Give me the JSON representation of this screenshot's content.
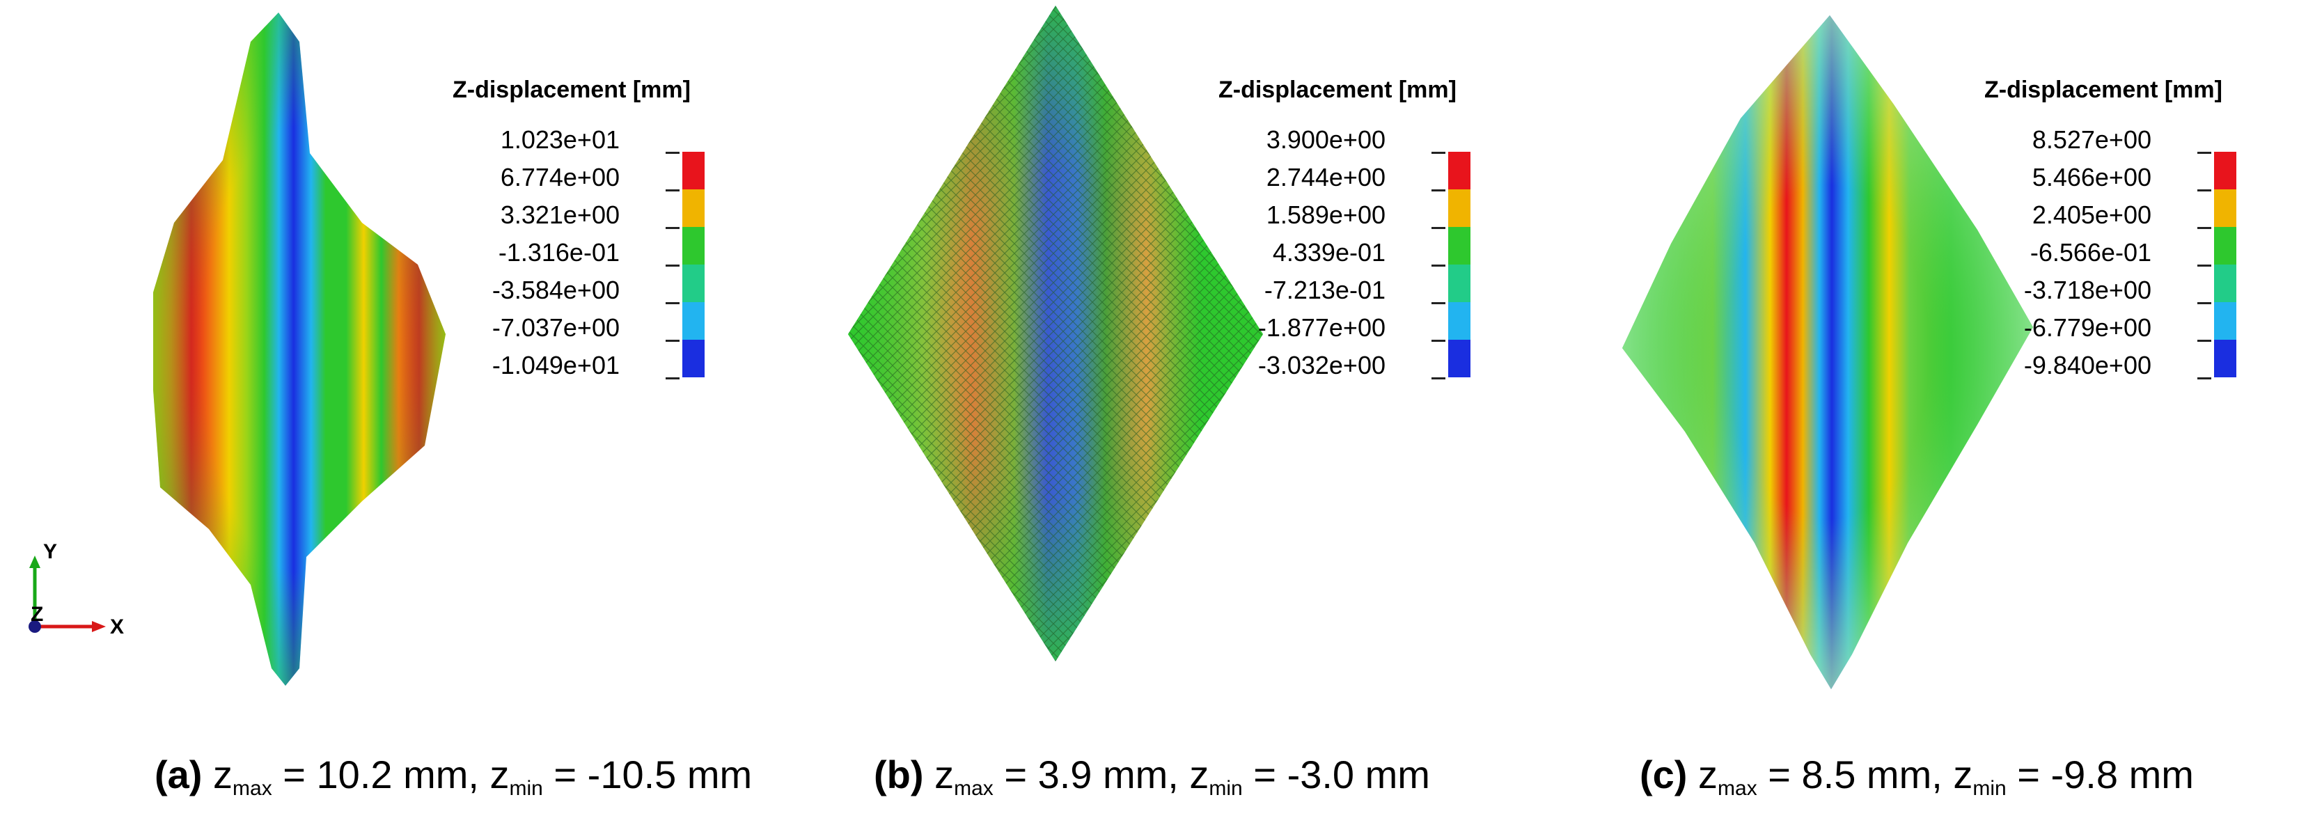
{
  "panels": [
    {
      "id": "a",
      "legend_title": "Z-displacement [mm]",
      "ticks": [
        "1.023e+01",
        "6.774e+00",
        "3.321e+00",
        "-1.316e-01",
        "-3.584e+00",
        "-7.037e+00",
        "-1.049e+01"
      ],
      "caption": {
        "label": "(a)",
        "zmax_sym": "z",
        "zmax_sub": "max",
        "zmax_text": " = 10.2 mm, ",
        "zmin_sym": "z",
        "zmin_sub": "min",
        "zmin_text": " = -10.5 mm"
      }
    },
    {
      "id": "b",
      "legend_title": "Z-displacement [mm]",
      "ticks": [
        "3.900e+00",
        "2.744e+00",
        "1.589e+00",
        "4.339e-01",
        "-7.213e-01",
        "-1.877e+00",
        "-3.032e+00"
      ],
      "caption": {
        "label": "(b)",
        "zmax_sym": "z",
        "zmax_sub": "max",
        "zmax_text": " = 3.9 mm, ",
        "zmin_sym": "z",
        "zmin_sub": "min",
        "zmin_text": " = -3.0 mm"
      }
    },
    {
      "id": "c",
      "legend_title": "Z-displacement [mm]",
      "ticks": [
        "8.527e+00",
        "5.466e+00",
        "2.405e+00",
        "-6.566e-01",
        "-3.718e+00",
        "-6.779e+00",
        "-9.840e+00"
      ],
      "caption": {
        "label": "(c)",
        "zmax_sym": "z",
        "zmax_sub": "max",
        "zmax_text": " = 8.5 mm, ",
        "zmin_sym": "z",
        "zmin_sub": "min",
        "zmin_text": " = -9.8 mm"
      }
    }
  ],
  "legend_colors": [
    "#e8141c",
    "#f0b400",
    "#2ec82e",
    "#22cc88",
    "#22b4f0",
    "#1a2ee0"
  ],
  "axis_triad": {
    "y_label": "Y",
    "z_label": "Z",
    "x_label": "X"
  }
}
